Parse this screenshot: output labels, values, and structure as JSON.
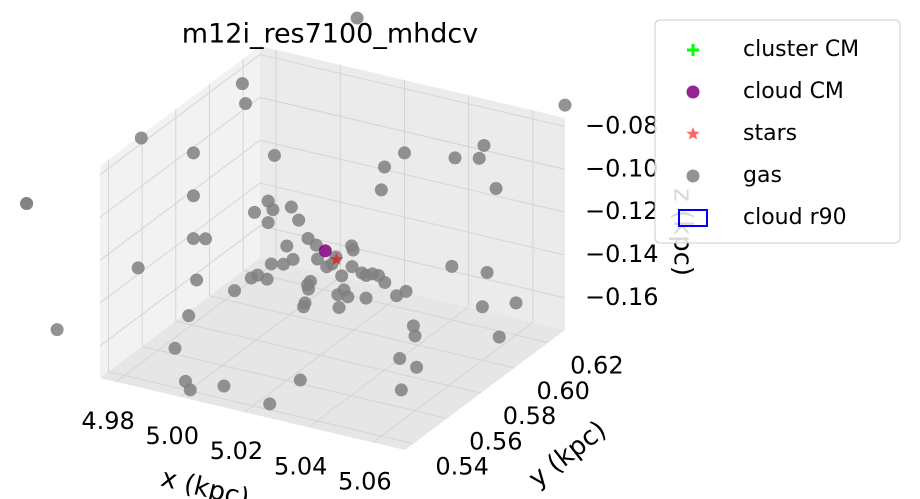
{
  "chart_data": {
    "type": "scatter3d",
    "title": "m12i_res7100_mhdcv",
    "x_label": "x (kpc)",
    "y_label": "y (kpc)",
    "z_label": "z (kpc)",
    "xlim": [
      4.975,
      5.07
    ],
    "ylim": [
      0.535,
      0.63
    ],
    "zlim": [
      -0.175,
      -0.076
    ],
    "xticks": [
      4.98,
      {
        "value": 5,
        "label": "5.00"
      },
      5.02,
      5.04,
      5.06
    ],
    "yticks": [
      0.54,
      0.56,
      0.58,
      {
        "value": 0.6,
        "label": "0.60"
      },
      0.62
    ],
    "zticks": [
      {
        "value": -0.16,
        "label": "−0.16"
      },
      {
        "value": -0.14,
        "label": "−0.14"
      },
      {
        "value": -0.12,
        "label": "−0.12"
      },
      {
        "value": -0.1,
        "label": "−0.10"
      },
      {
        "value": -0.08,
        "label": "−0.08"
      }
    ],
    "grid": true,
    "legend": "upper right",
    "series": [
      {
        "name": "cluster CM",
        "color": "#00ff00",
        "marker": "plus",
        "x": [],
        "y": [],
        "z": []
      },
      {
        "name": "cloud CM",
        "color": "#800080",
        "marker": "circle",
        "x": [
          5.02
        ],
        "y": [
          0.583
        ],
        "z": [
          -0.128
        ]
      },
      {
        "name": "stars",
        "color": "#ff0000",
        "marker": "star",
        "x": [
          5.024
        ],
        "y": [
          0.582
        ],
        "z": [
          -0.13
        ]
      },
      {
        "name": "gas",
        "color": "#808080",
        "marker": "circle",
        "x": [
          5.021,
          5.018,
          5.025,
          5.015,
          5.03,
          5.012,
          5.028,
          5.022,
          5.019,
          5.035,
          5.008,
          5.026,
          5.017,
          5.032,
          5.023,
          5.011,
          5.029,
          5.014,
          5.038,
          5.005,
          5.024,
          5.02,
          5.016,
          5.033,
          5.027,
          4.96,
          4.99,
          5.05,
          5.07,
          4.98,
          5.0,
          5.04,
          5.06,
          4.97,
          5.01,
          5.03,
          5.05,
          4.99,
          5.02,
          5.08,
          4.95,
          5.0,
          5.04,
          5.06,
          4.98,
          5.01,
          5.03,
          5.07,
          4.97,
          5.05,
          5.02,
          4.99,
          5.04,
          5.0,
          5.06,
          4.96,
          5.03,
          5.01,
          5.08,
          4.98,
          5.05,
          5.02,
          4.97,
          5.04,
          5.0,
          5.06,
          4.99,
          5.03,
          5.01,
          5.07,
          4.98,
          5.05,
          5.02,
          4.96,
          5.04,
          5.0,
          5.06,
          5.03,
          4.99,
          5.01
        ],
        "y": [
          0.585,
          0.578,
          0.59,
          0.582,
          0.575,
          0.588,
          0.592,
          0.58,
          0.572,
          0.586,
          0.583,
          0.579,
          0.595,
          0.576,
          0.587,
          0.581,
          0.574,
          0.589,
          0.584,
          0.577,
          0.591,
          0.573,
          0.586,
          0.58,
          0.583,
          0.52,
          0.6,
          0.55,
          0.63,
          0.57,
          0.51,
          0.62,
          0.54,
          0.6,
          0.65,
          0.53,
          0.58,
          0.61,
          0.5,
          0.56,
          0.64,
          0.59,
          0.52,
          0.62,
          0.55,
          0.57,
          0.66,
          0.53,
          0.6,
          0.51,
          0.63,
          0.56,
          0.58,
          0.54,
          0.61,
          0.65,
          0.52,
          0.59,
          0.57,
          0.5,
          0.62,
          0.55,
          0.6,
          0.53,
          0.64,
          0.56,
          0.58,
          0.51,
          0.63,
          0.54,
          0.61,
          0.57,
          0.66,
          0.52,
          0.59,
          0.55,
          0.6,
          0.53,
          0.62,
          0.56
        ],
        "z": [
          -0.135,
          -0.14,
          -0.13,
          -0.145,
          -0.138,
          -0.128,
          -0.142,
          -0.133,
          -0.148,
          -0.136,
          -0.13,
          -0.144,
          -0.139,
          -0.127,
          -0.141,
          -0.134,
          -0.146,
          -0.131,
          -0.137,
          -0.143,
          -0.129,
          -0.14,
          -0.135,
          -0.132,
          -0.147,
          -0.09,
          -0.16,
          -0.12,
          -0.07,
          -0.18,
          -0.1,
          -0.15,
          -0.06,
          -0.13,
          -0.19,
          -0.08,
          -0.17,
          -0.11,
          -0.14,
          -0.05,
          -0.2,
          -0.12,
          -0.09,
          -0.16,
          -0.07,
          -0.13,
          -0.18,
          -0.1,
          -0.15,
          -0.06,
          -0.11,
          -0.19,
          -0.08,
          -0.14,
          -0.17,
          -0.12,
          -0.1,
          -0.16,
          -0.07,
          -0.13,
          -0.09,
          -0.18,
          -0.11,
          -0.15,
          -0.06,
          -0.14,
          -0.2,
          -0.1,
          -0.17,
          -0.12,
          -0.08,
          -0.16,
          -0.13,
          -0.09,
          -0.19,
          -0.11,
          -0.15,
          -0.07,
          -0.14,
          -0.1
        ]
      },
      {
        "name": "cloud r90",
        "color": "#0000ff",
        "marker": "rect",
        "x": [],
        "y": [],
        "z": []
      }
    ]
  }
}
